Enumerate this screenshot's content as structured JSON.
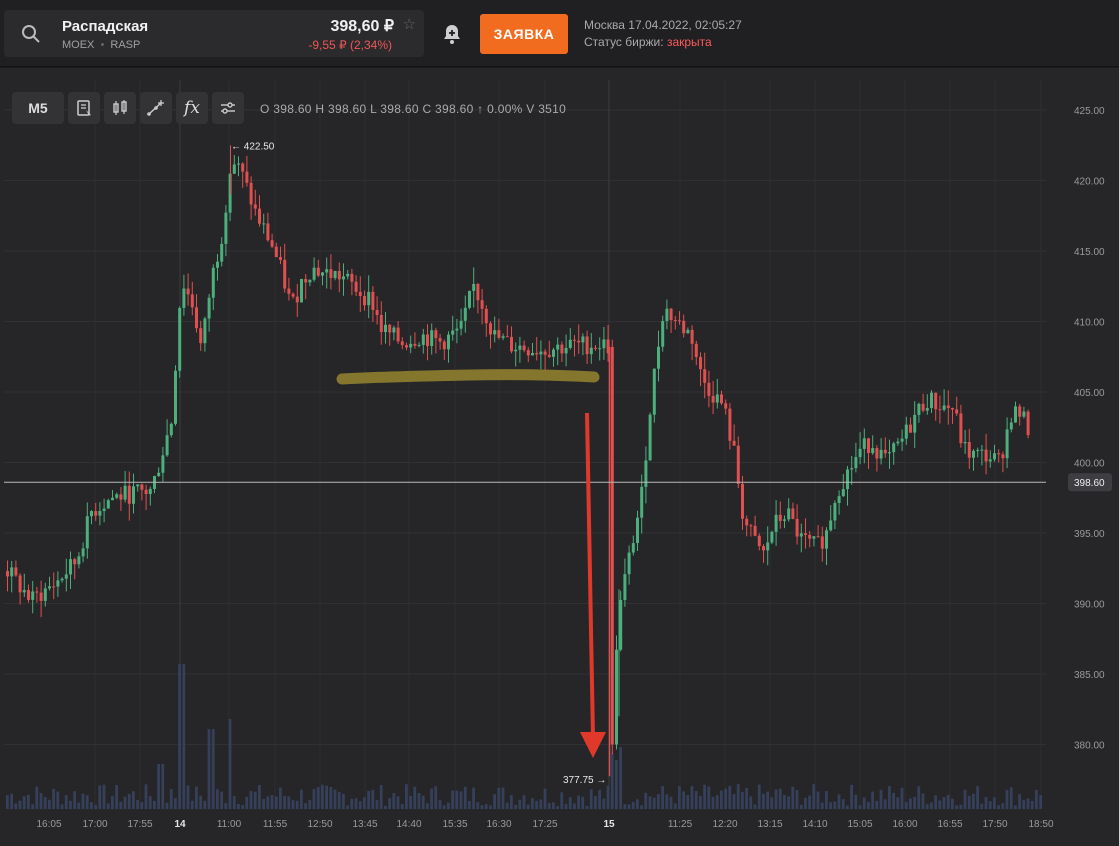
{
  "ticker": {
    "name": "Распадская",
    "exchange": "MOEX",
    "code": "RASP",
    "separator": "•",
    "price": "398,60 ₽",
    "change": "-9,55 ₽ (2,34%)"
  },
  "header": {
    "order_button": "ЗАЯВКА",
    "datetime": "Москва 17.04.2022, 02:05:27",
    "status_label": "Статус биржи:",
    "status_value": "закрыта"
  },
  "toolbar": {
    "interval": "M5",
    "ohlc": "O 398.60  H 398.60  L 398.60  C 398.60  ↑ 0.00%  V 3510"
  },
  "chart_data": {
    "type": "candlestick",
    "y_ticks": [
      "425.00",
      "420.00",
      "415.00",
      "410.00",
      "405.00",
      "400.00",
      "398.60",
      "395.00",
      "390.00",
      "385.00",
      "380.00"
    ],
    "ylim": [
      375,
      427
    ],
    "x_ticks": [
      "16:05",
      "17:00",
      "17:55",
      "14",
      "11:00",
      "11:55",
      "12:50",
      "13:45",
      "14:40",
      "15:35",
      "16:30",
      "17:25",
      "15",
      "11:25",
      "12:20",
      "13:15",
      "14:10",
      "15:05",
      "16:00",
      "16:55",
      "17:50",
      "18:50"
    ],
    "current_price": 398.6,
    "high_annotation": "← 422.50",
    "low_annotation": "377.75 →",
    "colors": {
      "up": "#4caf7d",
      "down": "#e05050",
      "volume": "#36405a",
      "arrow": "#e0392b",
      "highlight": "#8a7a2e"
    },
    "annotations": [
      "freehand horizontal line near 406",
      "red arrow pointing down at 15 open"
    ]
  },
  "icons": {
    "search": "search-icon",
    "star": "star-icon",
    "bell": "bell-add-icon"
  }
}
